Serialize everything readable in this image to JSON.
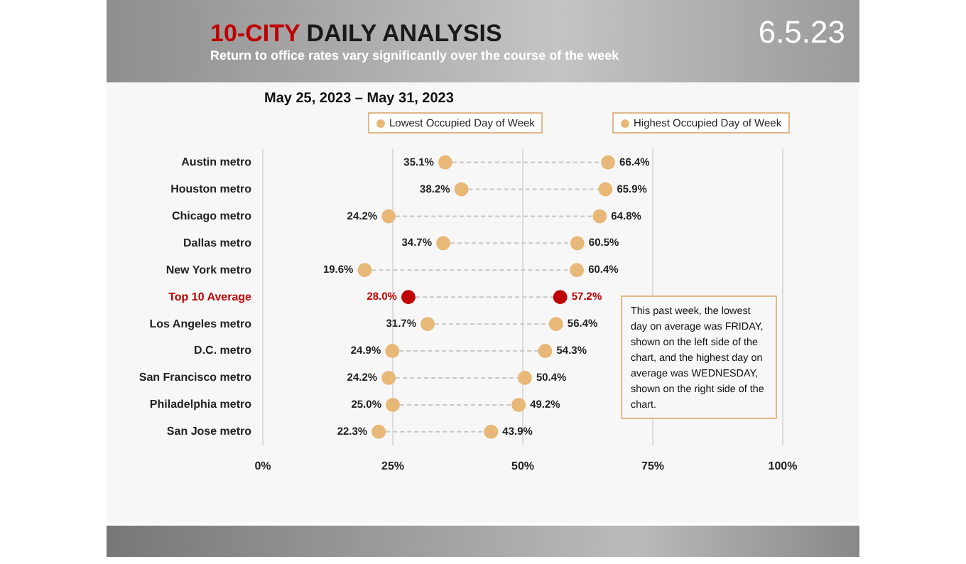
{
  "chart_data": {
    "type": "scatter",
    "orientation": "horizontal",
    "title": "10-CITY DAILY ANALYSIS",
    "subtitle": "Return to office rates vary significantly over the course of the week",
    "annotations": [
      "6.5.23",
      "May 25, 2023 – May 31, 2023",
      "This past week, the lowest day on average was FRIDAY, shown on the left side of the chart, and the highest day on average was WEDNESDAY, shown on the right side of the chart."
    ],
    "categories": [
      "Austin metro",
      "Houston metro",
      "Chicago metro",
      "Dallas metro",
      "New York metro",
      "Top 10 Average",
      "Los Angeles metro",
      "D.C. metro",
      "San Francisco metro",
      "Philadelphia metro",
      "San Jose metro"
    ],
    "series": [
      {
        "name": "Lowest Occupied Day of Week",
        "color": "#e8b878",
        "colors": [
          "#e8b878",
          "#e8b878",
          "#e8b878",
          "#e8b878",
          "#e8b878",
          "#c00000",
          "#e8b878",
          "#e8b878",
          "#e8b878",
          "#e8b878",
          "#e8b878"
        ],
        "values": [
          35.1,
          38.2,
          24.2,
          34.7,
          19.6,
          28.0,
          31.7,
          24.9,
          24.2,
          25.0,
          22.3
        ],
        "value_labels": [
          "35.1%",
          "38.2%",
          "24.2%",
          "34.7%",
          "19.6%",
          "28.0%",
          "31.7%",
          "24.9%",
          "24.2%",
          "25.0%",
          "22.3%"
        ]
      },
      {
        "name": "Highest Occupied Day of Week",
        "color": "#e8b878",
        "colors": [
          "#e8b878",
          "#e8b878",
          "#e8b878",
          "#e8b878",
          "#e8b878",
          "#c00000",
          "#e8b878",
          "#e8b878",
          "#e8b878",
          "#e8b878",
          "#e8b878"
        ],
        "values": [
          66.4,
          65.9,
          64.8,
          60.5,
          60.4,
          57.2,
          56.4,
          54.3,
          50.4,
          49.2,
          43.9
        ],
        "value_labels": [
          "66.4%",
          "65.9%",
          "64.8%",
          "60.5%",
          "60.4%",
          "57.2%",
          "56.4%",
          "54.3%",
          "50.4%",
          "49.2%",
          "43.9%"
        ]
      }
    ],
    "xlim": [
      0,
      100
    ],
    "xticks": [
      {
        "value": 0,
        "label": "0%"
      },
      {
        "value": 25,
        "label": "25%"
      },
      {
        "value": 50,
        "label": "50%"
      },
      {
        "value": 75,
        "label": "75%"
      },
      {
        "value": 100,
        "label": "100%"
      }
    ],
    "grid": "x",
    "legend": "top",
    "marker": "circle"
  }
}
